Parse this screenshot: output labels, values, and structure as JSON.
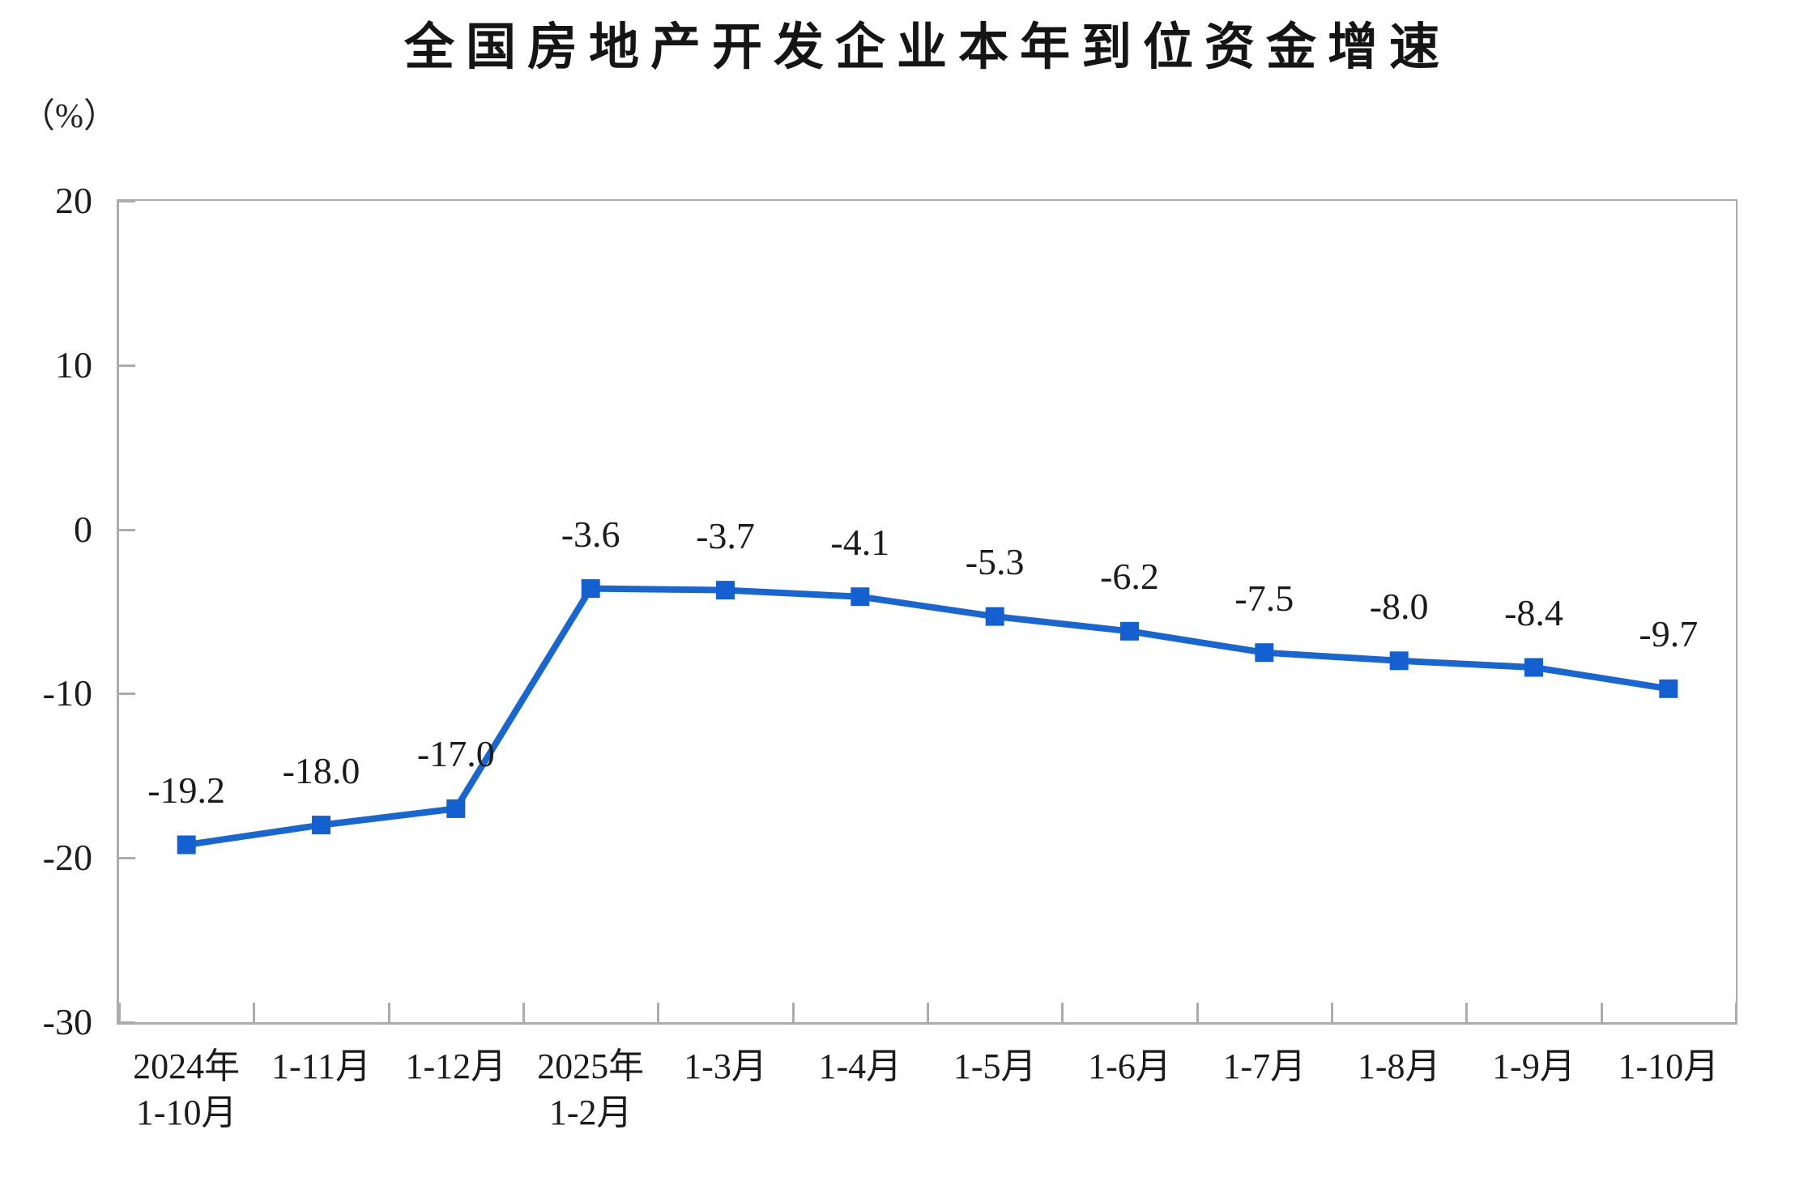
{
  "chart_data": {
    "type": "line",
    "title": "全国房地产开发企业本年到位资金增速",
    "unit_label": "（%）",
    "categories": [
      [
        "2024年",
        "1-10月"
      ],
      [
        "1-11月"
      ],
      [
        "1-12月"
      ],
      [
        "2025年",
        "1-2月"
      ],
      [
        "1-3月"
      ],
      [
        "1-4月"
      ],
      [
        "1-5月"
      ],
      [
        "1-6月"
      ],
      [
        "1-7月"
      ],
      [
        "1-8月"
      ],
      [
        "1-9月"
      ],
      [
        "1-10月"
      ]
    ],
    "values": [
      -19.2,
      -18.0,
      -17.0,
      -3.6,
      -3.7,
      -4.1,
      -5.3,
      -6.2,
      -7.5,
      -8.0,
      -8.4,
      -9.7
    ],
    "data_labels": [
      "-19.2",
      "-18.0",
      "-17.0",
      "-3.6",
      "-3.7",
      "-4.1",
      "-5.3",
      "-6.2",
      "-7.5",
      "-8.0",
      "-8.4",
      "-9.7"
    ],
    "y_ticks": [
      20,
      10,
      0,
      -10,
      -20,
      -30
    ],
    "ylim": [
      -30,
      20
    ],
    "grid": "off",
    "legend": "none",
    "colors": {
      "line": "#1a66cc",
      "marker": "#1560d0",
      "axis": "#acacac",
      "text": "#1b1b1b"
    }
  }
}
